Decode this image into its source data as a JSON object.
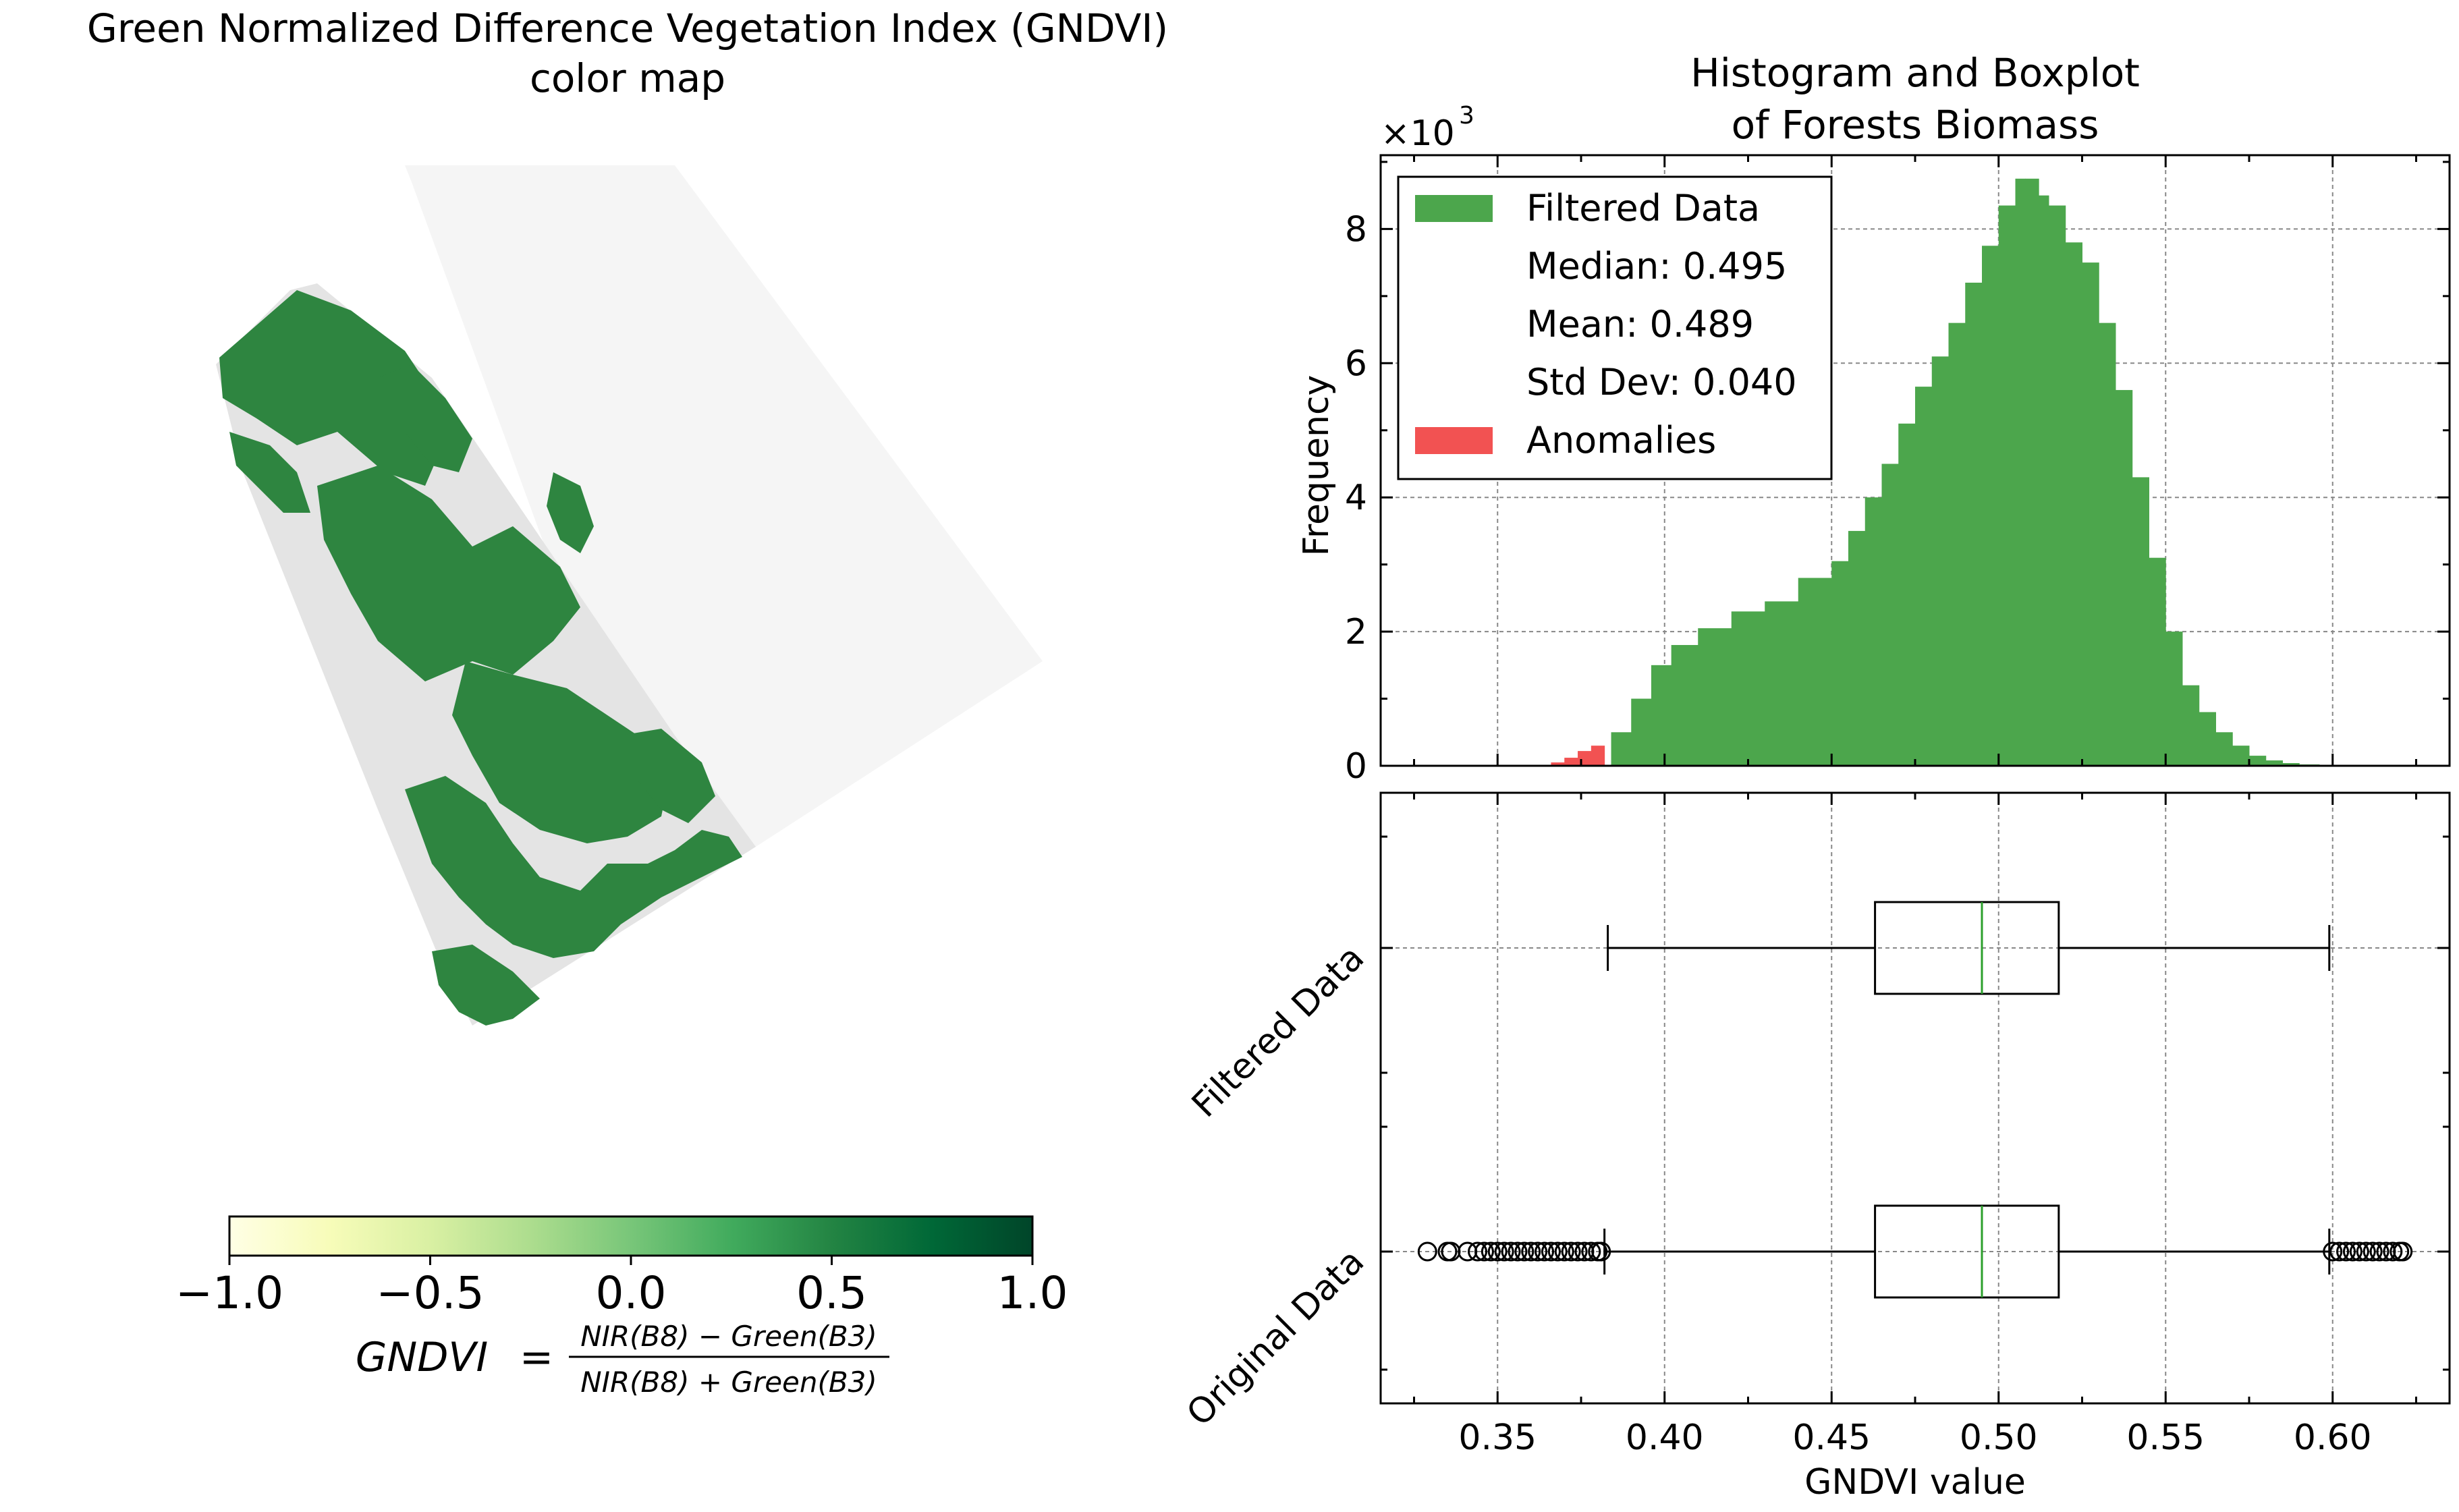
{
  "left": {
    "title_line1": "Green Normalized Difference Vegetation Index (GNDVI)",
    "title_line2": "color map",
    "colorbar": {
      "ticks": [
        -1.0,
        -0.5,
        0.0,
        0.5,
        1.0
      ],
      "tick_labels": [
        "−1.0",
        "−0.5",
        "0.0",
        "0.5",
        "1.0"
      ],
      "colors": [
        "#ffffe5",
        "#f7fcb9",
        "#d9f0a3",
        "#addd8e",
        "#78c679",
        "#41ab5d",
        "#238443",
        "#006837",
        "#004529"
      ]
    },
    "formula": {
      "lhs": "GNDVI",
      "eq": "=",
      "numerator": "NIR(B8) − Green(B3)",
      "denominator": "NIR(B8) + Green(B3)"
    },
    "map_colors": {
      "vegetation": "#2e8540",
      "background": "#e6e6e6"
    }
  },
  "chart_data": [
    {
      "type": "bar",
      "title": "Histogram and Boxplot\nof Forests Biomass",
      "title_line1": "Histogram and Boxplot",
      "title_line2": "of Forests Biomass",
      "ylabel": "Frequency",
      "yscale_label": "×10",
      "yscale_exponent": "3",
      "xlim": [
        0.315,
        0.635
      ],
      "ylim": [
        0,
        9.1
      ],
      "xticks": [
        0.35,
        0.4,
        0.45,
        0.5,
        0.55,
        0.6
      ],
      "yticks": [
        0,
        2,
        4,
        6,
        8
      ],
      "ytick_labels": [
        "0",
        "2",
        "4",
        "6",
        "8"
      ],
      "grid": true,
      "legend_position": "top-left",
      "legend": {
        "filtered": "Filtered Data",
        "median": "Median: 0.495",
        "mean": "Mean: 0.489",
        "std": "Std Dev: 0.040",
        "anomalies": "Anomalies"
      },
      "colors": {
        "filtered": "#4ca64c",
        "anomalies": "#f25252"
      },
      "series": [
        {
          "name": "Anomalies",
          "x": [
            0.366,
            0.37,
            0.374,
            0.378,
            0.382
          ],
          "values": [
            0.05,
            0.12,
            0.22,
            0.3,
            0.38
          ]
        },
        {
          "name": "Filtered Data",
          "x": [
            0.384,
            0.39,
            0.396,
            0.402,
            0.41,
            0.42,
            0.43,
            0.44,
            0.45,
            0.455,
            0.46,
            0.465,
            0.47,
            0.475,
            0.48,
            0.485,
            0.49,
            0.495,
            0.5,
            0.505,
            0.508,
            0.512,
            0.515,
            0.52,
            0.525,
            0.53,
            0.535,
            0.54,
            0.545,
            0.55,
            0.555,
            0.56,
            0.565,
            0.57,
            0.575,
            0.58,
            0.585,
            0.59,
            0.596
          ],
          "values": [
            0.5,
            1.0,
            1.5,
            1.8,
            2.05,
            2.3,
            2.45,
            2.8,
            3.05,
            3.5,
            4.0,
            4.5,
            5.1,
            5.65,
            6.1,
            6.6,
            7.2,
            7.75,
            8.35,
            8.75,
            8.75,
            8.5,
            8.35,
            7.8,
            7.5,
            6.6,
            5.6,
            4.3,
            3.1,
            2.0,
            1.2,
            0.8,
            0.5,
            0.3,
            0.15,
            0.08,
            0.04,
            0.02,
            0.0
          ]
        }
      ]
    },
    {
      "type": "box",
      "xlabel": "GNDVI value",
      "xlim": [
        0.315,
        0.635
      ],
      "xticks": [
        0.35,
        0.4,
        0.45,
        0.5,
        0.55,
        0.6
      ],
      "xtick_labels": [
        "0.35",
        "0.40",
        "0.45",
        "0.50",
        "0.55",
        "0.60"
      ],
      "grid": true,
      "median_color": "#2ca02c",
      "boxes": [
        {
          "name": "Filtered Data",
          "whisker_low": 0.383,
          "q1": 0.463,
          "median": 0.495,
          "q3": 0.518,
          "whisker_high": 0.599,
          "outliers": []
        },
        {
          "name": "Original Data",
          "whisker_low": 0.382,
          "q1": 0.463,
          "median": 0.495,
          "q3": 0.518,
          "whisker_high": 0.599,
          "outliers": [
            0.329,
            0.335,
            0.336,
            0.341,
            0.344,
            0.346,
            0.348,
            0.35,
            0.352,
            0.354,
            0.356,
            0.358,
            0.36,
            0.362,
            0.364,
            0.366,
            0.368,
            0.37,
            0.372,
            0.374,
            0.376,
            0.378,
            0.38,
            0.381,
            0.6,
            0.602,
            0.604,
            0.606,
            0.608,
            0.61,
            0.612,
            0.614,
            0.616,
            0.618,
            0.62,
            0.621
          ]
        }
      ]
    }
  ]
}
